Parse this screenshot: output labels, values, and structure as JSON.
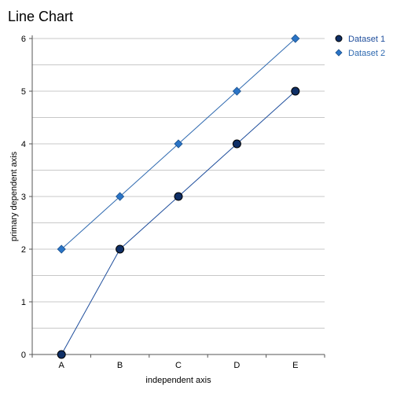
{
  "chart_data": {
    "type": "line",
    "title": "Line Chart",
    "xlabel": "independent axis",
    "ylabel": "primary dependent axis",
    "categories": [
      "A",
      "B",
      "C",
      "D",
      "E"
    ],
    "ylim": [
      0,
      6
    ],
    "y_ticks": [
      0,
      1,
      2,
      3,
      4,
      5,
      6
    ],
    "grid": true,
    "legend_position": "top-right",
    "series": [
      {
        "name": "Dataset 1",
        "values": [
          0,
          2,
          3,
          4,
          5
        ],
        "marker": "circle",
        "line_color": "#1f4e9c",
        "marker_color": "#0f2f66",
        "text_color": "#1f4e9c"
      },
      {
        "name": "Dataset 2",
        "values": [
          2,
          3,
          4,
          5,
          6
        ],
        "marker": "diamond",
        "line_color": "#2f6ab0",
        "marker_color": "#2a74c6",
        "text_color": "#2f6ab0"
      }
    ]
  }
}
